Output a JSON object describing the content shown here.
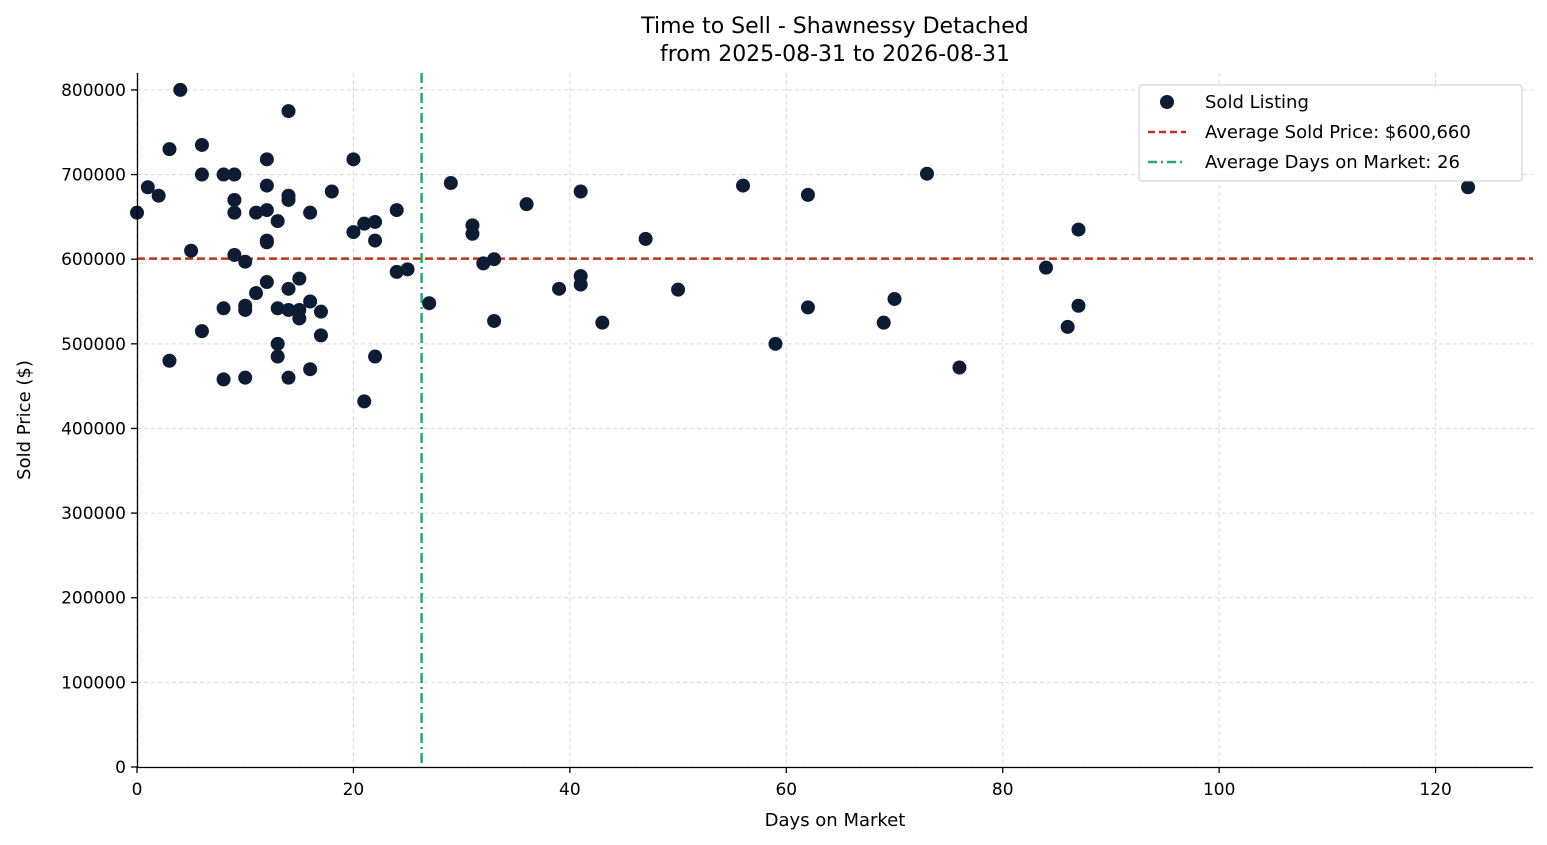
{
  "chart_data": {
    "type": "scatter",
    "title": "Time to Sell - Shawnessy Detached",
    "subtitle": "from 2025-08-31 to 2026-08-31",
    "xlabel": "Days on Market",
    "ylabel": "Sold Price ($)",
    "xlim": [
      0,
      129
    ],
    "ylim": [
      0,
      820000
    ],
    "xticks": [
      0,
      20,
      40,
      60,
      80,
      100,
      120
    ],
    "yticks": [
      0,
      100000,
      200000,
      300000,
      400000,
      500000,
      600000,
      700000,
      800000
    ],
    "grid": true,
    "legend_position": "top-right",
    "colors": {
      "points": "#0d1b33",
      "avg_price": "#b5381f",
      "avg_days": "#2aa86a"
    },
    "series": [
      {
        "name": "Sold Listing",
        "points": [
          [
            0,
            655000
          ],
          [
            1,
            685000
          ],
          [
            2,
            675000
          ],
          [
            3,
            730000
          ],
          [
            3,
            480000
          ],
          [
            4,
            800000
          ],
          [
            5,
            610000
          ],
          [
            6,
            735000
          ],
          [
            6,
            700000
          ],
          [
            6,
            515000
          ],
          [
            8,
            700000
          ],
          [
            8,
            542000
          ],
          [
            8,
            458000
          ],
          [
            9,
            700000
          ],
          [
            9,
            670000
          ],
          [
            9,
            655000
          ],
          [
            9,
            605000
          ],
          [
            10,
            597000
          ],
          [
            10,
            545000
          ],
          [
            10,
            540000
          ],
          [
            10,
            460000
          ],
          [
            11,
            655000
          ],
          [
            11,
            560000
          ],
          [
            12,
            718000
          ],
          [
            12,
            687000
          ],
          [
            12,
            658000
          ],
          [
            12,
            622000
          ],
          [
            12,
            620000
          ],
          [
            12,
            573000
          ],
          [
            13,
            645000
          ],
          [
            13,
            542000
          ],
          [
            13,
            500000
          ],
          [
            13,
            485000
          ],
          [
            14,
            775000
          ],
          [
            14,
            675000
          ],
          [
            14,
            670000
          ],
          [
            14,
            565000
          ],
          [
            14,
            540000
          ],
          [
            14,
            460000
          ],
          [
            15,
            577000
          ],
          [
            15,
            540000
          ],
          [
            15,
            530000
          ],
          [
            16,
            655000
          ],
          [
            16,
            550000
          ],
          [
            16,
            470000
          ],
          [
            17,
            538000
          ],
          [
            17,
            510000
          ],
          [
            18,
            680000
          ],
          [
            20,
            718000
          ],
          [
            20,
            632000
          ],
          [
            21,
            642000
          ],
          [
            21,
            432000
          ],
          [
            22,
            644000
          ],
          [
            22,
            622000
          ],
          [
            22,
            485000
          ],
          [
            24,
            658000
          ],
          [
            24,
            585000
          ],
          [
            25,
            588000
          ],
          [
            27,
            548000
          ],
          [
            29,
            690000
          ],
          [
            31,
            640000
          ],
          [
            31,
            630000
          ],
          [
            32,
            595000
          ],
          [
            33,
            600000
          ],
          [
            33,
            527000
          ],
          [
            36,
            665000
          ],
          [
            39,
            565000
          ],
          [
            41,
            680000
          ],
          [
            41,
            580000
          ],
          [
            41,
            570000
          ],
          [
            43,
            525000
          ],
          [
            47,
            624000
          ],
          [
            50,
            564000
          ],
          [
            56,
            687000
          ],
          [
            59,
            500000
          ],
          [
            62,
            676000
          ],
          [
            62,
            543000
          ],
          [
            69,
            525000
          ],
          [
            70,
            553000
          ],
          [
            73,
            701000
          ],
          [
            76,
            472000
          ],
          [
            84,
            590000
          ],
          [
            86,
            520000
          ],
          [
            87,
            635000
          ],
          [
            87,
            545000
          ],
          [
            123,
            685000
          ]
        ]
      }
    ],
    "reference_lines": [
      {
        "name": "Average Sold Price: $600,660",
        "axis": "y",
        "value": 600660,
        "style": "dashed"
      },
      {
        "name": "Average Days on Market: 26",
        "axis": "x",
        "value": 26.3,
        "style": "dashdot"
      }
    ]
  }
}
